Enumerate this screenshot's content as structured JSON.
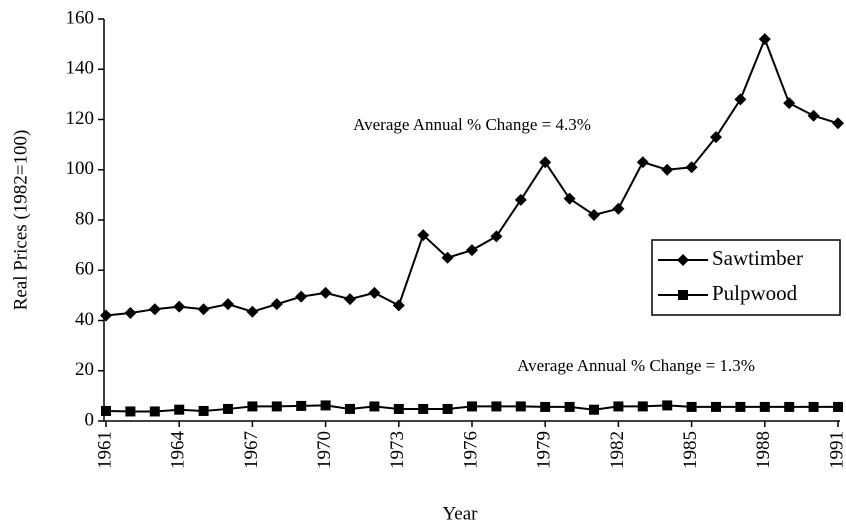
{
  "chart_data": {
    "type": "line",
    "xlabel": "Year",
    "ylabel": "Real Prices (1982=100)",
    "x": [
      1961,
      1962,
      1963,
      1964,
      1965,
      1966,
      1967,
      1968,
      1969,
      1970,
      1971,
      1972,
      1973,
      1974,
      1975,
      1976,
      1977,
      1978,
      1979,
      1980,
      1981,
      1982,
      1983,
      1984,
      1985,
      1986,
      1987,
      1988,
      1989,
      1990,
      1991
    ],
    "series": [
      {
        "name": "Sawtimber",
        "color": "#000000",
        "marker": "diamond",
        "values": [
          42,
          43,
          44.5,
          45.5,
          44.5,
          46.5,
          43.5,
          46.5,
          49.5,
          51,
          48.5,
          51,
          46,
          74,
          65,
          68,
          73.5,
          88,
          103,
          88.5,
          82,
          84.5,
          103,
          100,
          101,
          113,
          128,
          152,
          126.5,
          121.5,
          118.5
        ]
      },
      {
        "name": "Pulpwood",
        "color": "#000000",
        "marker": "square",
        "values": [
          4,
          3.8,
          3.8,
          4.5,
          4,
          4.8,
          5.8,
          5.8,
          6,
          6.2,
          4.8,
          5.8,
          4.8,
          4.8,
          4.8,
          5.8,
          5.8,
          5.8,
          5.6,
          5.6,
          4.5,
          5.8,
          5.8,
          6.2,
          5.6,
          5.6,
          5.6,
          5.6,
          5.6,
          5.6,
          5.6
        ]
      }
    ],
    "annotations": [
      "Average Annual % Change = 4.3%",
      "Average Annual % Change = 1.3%"
    ],
    "xlim": [
      1961,
      1991
    ],
    "xticks": [
      1961,
      1964,
      1967,
      1970,
      1973,
      1976,
      1979,
      1982,
      1985,
      1988,
      1991
    ],
    "ylim": [
      0,
      160
    ],
    "yticks": [
      0,
      20,
      40,
      60,
      80,
      100,
      120,
      140,
      160
    ],
    "grid": false,
    "legend": "right"
  }
}
